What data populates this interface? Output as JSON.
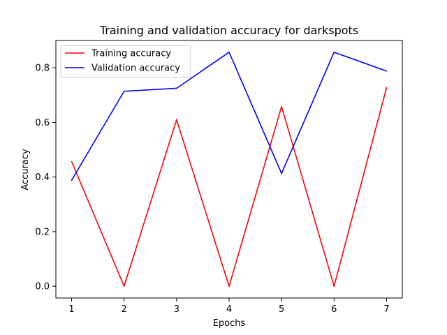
{
  "chart_data": {
    "type": "line",
    "title": "Training and validation accuracy for darkspots",
    "xlabel": "Epochs",
    "ylabel": "Accuracy",
    "x": [
      1,
      2,
      3,
      4,
      5,
      6,
      7
    ],
    "xticks": [
      "1",
      "2",
      "3",
      "4",
      "5",
      "6",
      "7"
    ],
    "yticks": [
      "0.0",
      "0.2",
      "0.4",
      "0.6",
      "0.8"
    ],
    "xlim": [
      0.7,
      7.3
    ],
    "ylim": [
      -0.043,
      0.9
    ],
    "grid": false,
    "legend_position": "top-left",
    "series": [
      {
        "name": "Training accuracy",
        "color": "#ff0000",
        "values": [
          0.457,
          0.0,
          0.61,
          0.0,
          0.658,
          0.0,
          0.727
        ]
      },
      {
        "name": "Validation accuracy",
        "color": "#0000ff",
        "values": [
          0.388,
          0.714,
          0.725,
          0.857,
          0.413,
          0.857,
          0.788
        ]
      }
    ]
  }
}
